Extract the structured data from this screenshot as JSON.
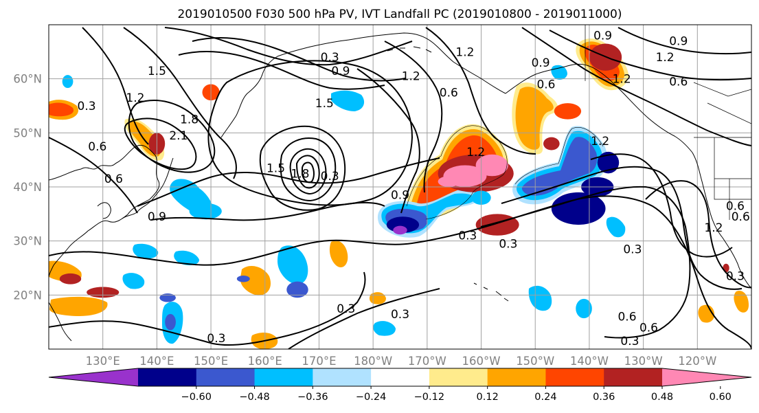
{
  "figure": {
    "title": "2019010500 F030 500 hPa PV, IVT Landfall PC (2019010800 - 2019011000)"
  },
  "map": {
    "projection": "equirectangular",
    "lon_range": [
      120,
      250
    ],
    "lat_range": [
      10,
      70
    ],
    "grid": true,
    "lat_ticks": [
      {
        "value": 20,
        "label": "20°N"
      },
      {
        "value": 30,
        "label": "30°N"
      },
      {
        "value": 40,
        "label": "40°N"
      },
      {
        "value": 50,
        "label": "50°N"
      },
      {
        "value": 60,
        "label": "60°N"
      }
    ],
    "lon_ticks": [
      {
        "value": 130,
        "label": "130°E"
      },
      {
        "value": 140,
        "label": "140°E"
      },
      {
        "value": 150,
        "label": "150°E"
      },
      {
        "value": 160,
        "label": "160°E"
      },
      {
        "value": 170,
        "label": "170°E"
      },
      {
        "value": 180,
        "label": "180°W"
      },
      {
        "value": 190,
        "label": "170°W"
      },
      {
        "value": 200,
        "label": "160°W"
      },
      {
        "value": 210,
        "label": "150°W"
      },
      {
        "value": 220,
        "label": "140°W"
      },
      {
        "value": 230,
        "label": "130°W"
      },
      {
        "value": 240,
        "label": "120°W"
      }
    ],
    "contour_labels": [
      {
        "text": "0.3",
        "lon": 127,
        "lat": 54.5
      },
      {
        "text": "0.6",
        "lon": 129,
        "lat": 47
      },
      {
        "text": "0.6",
        "lon": 132,
        "lat": 41
      },
      {
        "text": "0.9",
        "lon": 140,
        "lat": 34
      },
      {
        "text": "1.2",
        "lon": 136,
        "lat": 56
      },
      {
        "text": "1.5",
        "lon": 140,
        "lat": 61
      },
      {
        "text": "1.8",
        "lon": 146,
        "lat": 52
      },
      {
        "text": "2.1",
        "lon": 144,
        "lat": 49
      },
      {
        "text": "1.5",
        "lon": 162,
        "lat": 43
      },
      {
        "text": "1.8",
        "lon": 166.5,
        "lat": 42
      },
      {
        "text": "0.3",
        "lon": 172,
        "lat": 41.5
      },
      {
        "text": "0.3",
        "lon": 172,
        "lat": 63.5
      },
      {
        "text": "0.9",
        "lon": 174,
        "lat": 61
      },
      {
        "text": "1.5",
        "lon": 171,
        "lat": 55
      },
      {
        "text": "1.2",
        "lon": 187,
        "lat": 60
      },
      {
        "text": "0.6",
        "lon": 194,
        "lat": 57
      },
      {
        "text": "1.2",
        "lon": 199,
        "lat": 46
      },
      {
        "text": "0.9",
        "lon": 185,
        "lat": 38
      },
      {
        "text": "1.2",
        "lon": 197,
        "lat": 64.5
      },
      {
        "text": "1.2",
        "lon": 222,
        "lat": 48
      },
      {
        "text": "0.9",
        "lon": 211,
        "lat": 62.5
      },
      {
        "text": "0.6",
        "lon": 212,
        "lat": 58.5
      },
      {
        "text": "0.9",
        "lon": 222.5,
        "lat": 67.5
      },
      {
        "text": "1.2",
        "lon": 226,
        "lat": 59.5
      },
      {
        "text": "0.9",
        "lon": 236.5,
        "lat": 66.5
      },
      {
        "text": "1.2",
        "lon": 234,
        "lat": 63.5
      },
      {
        "text": "0.6",
        "lon": 236.5,
        "lat": 59
      },
      {
        "text": "0.3",
        "lon": 197.5,
        "lat": 30.5
      },
      {
        "text": "0.3",
        "lon": 205,
        "lat": 29
      },
      {
        "text": "0.3",
        "lon": 228,
        "lat": 28
      },
      {
        "text": "0.3",
        "lon": 175,
        "lat": 17
      },
      {
        "text": "0.3",
        "lon": 185,
        "lat": 16
      },
      {
        "text": "0.3",
        "lon": 151,
        "lat": 11.5
      },
      {
        "text": "0.6",
        "lon": 227,
        "lat": 15.5
      },
      {
        "text": "0.6",
        "lon": 231,
        "lat": 13.5
      },
      {
        "text": "0.3",
        "lon": 227.5,
        "lat": 11
      },
      {
        "text": "0.3",
        "lon": 247,
        "lat": 23
      },
      {
        "text": "1.2",
        "lon": 243,
        "lat": 32
      },
      {
        "text": "0.6",
        "lon": 248,
        "lat": 34
      },
      {
        "text": "0.6",
        "lon": 247,
        "lat": 36
      }
    ],
    "shaded_blobs": [
      {
        "lon": 199,
        "lat": 42.5,
        "rx": 7,
        "ry": 3.5,
        "level": 0.48
      },
      {
        "lon": 197,
        "lat": 42,
        "rx": 4,
        "ry": 2,
        "level": 0.6
      },
      {
        "lon": 194,
        "lat": 41,
        "rx": 2,
        "ry": 1,
        "level": 0.7
      },
      {
        "lon": 202,
        "lat": 44,
        "rx": 3,
        "ry": 2,
        "level": 0.7
      },
      {
        "lon": 203,
        "lat": 33,
        "rx": 4,
        "ry": 2,
        "level": 0.48
      },
      {
        "lon": 223,
        "lat": 64,
        "rx": 3,
        "ry": 2.5,
        "level": 0.48
      },
      {
        "lon": 130,
        "lat": 20.5,
        "rx": 3,
        "ry": 1,
        "level": 0.48
      },
      {
        "lon": 124,
        "lat": 23,
        "rx": 2,
        "ry": 1,
        "level": 0.48
      },
      {
        "lon": 140,
        "lat": 48,
        "rx": 1.5,
        "ry": 2,
        "level": 0.48
      },
      {
        "lon": 213,
        "lat": 48,
        "rx": 1.5,
        "ry": 1.2,
        "level": 0.48
      },
      {
        "lon": 216,
        "lat": 54,
        "rx": 2.5,
        "ry": 1.5,
        "level": 0.36
      },
      {
        "lon": 150,
        "lat": 57.5,
        "rx": 1.6,
        "ry": 1.5,
        "level": 0.36
      },
      {
        "lon": 245.3,
        "lat": 25,
        "rx": 0.6,
        "ry": 0.8,
        "level": 0.48
      },
      {
        "lon": 218,
        "lat": 36,
        "rx": 5,
        "ry": 3,
        "level": -0.6
      },
      {
        "lon": 221.5,
        "lat": 40,
        "rx": 3,
        "ry": 1.8,
        "level": -0.6
      },
      {
        "lon": 223.5,
        "lat": 44.5,
        "rx": 2,
        "ry": 2,
        "level": -0.6
      },
      {
        "lon": 185.5,
        "lat": 33,
        "rx": 3,
        "ry": 1.5,
        "level": -0.6
      },
      {
        "lon": 185,
        "lat": 32,
        "rx": 1.3,
        "ry": 0.8,
        "level": -0.7
      },
      {
        "lon": 142,
        "lat": 19.5,
        "rx": 1.5,
        "ry": 0.8,
        "level": -0.48
      },
      {
        "lon": 156,
        "lat": 23,
        "rx": 1.2,
        "ry": 0.6,
        "level": -0.48
      },
      {
        "lon": 166,
        "lat": 21,
        "rx": 2,
        "ry": 1.5,
        "level": -0.48
      },
      {
        "lon": 142.5,
        "lat": 15,
        "rx": 1,
        "ry": 1.5,
        "level": -0.48
      },
      {
        "lon": 149,
        "lat": 35.5,
        "rx": 3,
        "ry": 1.5,
        "level": -0.36
      },
      {
        "lon": 219,
        "lat": 17.5,
        "rx": 1.5,
        "ry": 1.8,
        "level": -0.36
      },
      {
        "lon": 200,
        "lat": 38,
        "rx": 1.8,
        "ry": 1.3,
        "level": -0.36
      },
      {
        "lon": 123.5,
        "lat": 59.5,
        "rx": 1,
        "ry": 1.2,
        "level": -0.36
      }
    ]
  },
  "colorbar": {
    "levels": [
      -0.7,
      -0.6,
      -0.48,
      -0.36,
      -0.24,
      -0.12,
      0.12,
      0.24,
      0.36,
      0.48,
      0.6,
      0.7
    ],
    "colors": [
      "#9932cc",
      "#00008b",
      "#3b58cf",
      "#00bfff",
      "#b0e2ff",
      "#ffffff",
      "#ffeb8c",
      "#ffa500",
      "#ff4500",
      "#b22222",
      "#ff88b4"
    ],
    "tick_labels": [
      "−0.60",
      "−0.48",
      "−0.36",
      "−0.24",
      "−0.12",
      "0.12",
      "0.24",
      "0.36",
      "0.48",
      "0.60"
    ],
    "extend": "both"
  }
}
